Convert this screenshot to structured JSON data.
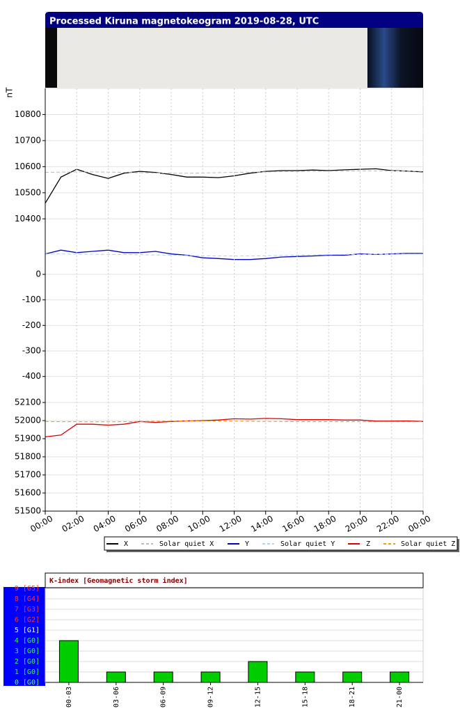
{
  "header": {
    "title": "Processed Kiruna magnetokeogram 2019-08-28, UTC"
  },
  "chart_data": [
    {
      "type": "line",
      "y_label": "nT",
      "grid": true,
      "x": [
        0,
        1,
        2,
        3,
        4,
        5,
        6,
        7,
        8,
        9,
        10,
        11,
        12,
        13,
        14,
        15,
        16,
        17,
        18,
        19,
        20,
        21,
        22,
        23,
        24
      ],
      "xlim": [
        0,
        24
      ],
      "ylim": [
        10350,
        10900
      ],
      "yticks": [
        10400,
        10500,
        10600,
        10700,
        10800
      ],
      "series": [
        {
          "name": "X",
          "color": "#000000",
          "values": [
            10460,
            10560,
            10590,
            10570,
            10555,
            10575,
            10582,
            10578,
            10570,
            10560,
            10560,
            10558,
            10565,
            10575,
            10582,
            10585,
            10585,
            10587,
            10585,
            10588,
            10590,
            10592,
            10585,
            10583,
            10580
          ]
        },
        {
          "name": "Solar quiet X",
          "color": "#bbbbbb",
          "dashed": true,
          "values": [
            10578,
            10579,
            10580,
            10580,
            10579,
            10578,
            10577,
            10576,
            10575,
            10575,
            10576,
            10577,
            10578,
            10579,
            10580,
            10581,
            10582,
            10582,
            10583,
            10583,
            10584,
            10584,
            10584,
            10583,
            10582
          ]
        }
      ]
    },
    {
      "type": "line",
      "grid": true,
      "x": [
        0,
        1,
        2,
        3,
        4,
        5,
        6,
        7,
        8,
        9,
        10,
        11,
        12,
        13,
        14,
        15,
        16,
        17,
        18,
        19,
        20,
        21,
        22,
        23,
        24
      ],
      "xlim": [
        0,
        24
      ],
      "ylim": [
        -450,
        150
      ],
      "yticks": [
        -400,
        -300,
        -200,
        -100,
        0
      ],
      "series": [
        {
          "name": "Y",
          "color": "#0000cc",
          "values": [
            80,
            95,
            85,
            90,
            95,
            85,
            85,
            90,
            80,
            75,
            65,
            62,
            58,
            58,
            62,
            68,
            70,
            72,
            75,
            75,
            80,
            78,
            80,
            82,
            82
          ]
        },
        {
          "name": "Solar quiet Y",
          "color": "#a8d8f0",
          "dashed": true,
          "values": [
            80,
            80,
            79,
            79,
            78,
            78,
            77,
            76,
            75,
            74,
            73,
            72,
            72,
            72,
            73,
            74,
            75,
            76,
            77,
            78,
            78,
            79,
            79,
            80,
            80
          ]
        }
      ]
    },
    {
      "type": "line",
      "grid": true,
      "x": [
        0,
        1,
        2,
        3,
        4,
        5,
        6,
        7,
        8,
        9,
        10,
        11,
        12,
        13,
        14,
        15,
        16,
        17,
        18,
        19,
        20,
        21,
        22,
        23,
        24
      ],
      "xlim": [
        0,
        24
      ],
      "ylim": [
        51500,
        52150
      ],
      "yticks": [
        51500,
        51600,
        51700,
        51800,
        51900,
        52000,
        52100
      ],
      "xticks": [
        {
          "value": 0,
          "label": "00:00"
        },
        {
          "value": 2,
          "label": "02:00"
        },
        {
          "value": 4,
          "label": "04:00"
        },
        {
          "value": 6,
          "label": "06:00"
        },
        {
          "value": 8,
          "label": "08:00"
        },
        {
          "value": 10,
          "label": "10:00"
        },
        {
          "value": 12,
          "label": "12:00"
        },
        {
          "value": 14,
          "label": "14:00"
        },
        {
          "value": 16,
          "label": "16:00"
        },
        {
          "value": 18,
          "label": "18:00"
        },
        {
          "value": 20,
          "label": "20:00"
        },
        {
          "value": 22,
          "label": "22:00"
        },
        {
          "value": 24,
          "label": "00:00"
        }
      ],
      "series": [
        {
          "name": "Z",
          "color": "#dd0000",
          "values": [
            51910,
            51920,
            51980,
            51980,
            51975,
            51980,
            51995,
            51990,
            51995,
            51998,
            52000,
            52003,
            52010,
            52008,
            52012,
            52010,
            52005,
            52005,
            52005,
            52003,
            52003,
            51997,
            51997,
            51998,
            51995
          ]
        },
        {
          "name": "Solar quiet Z",
          "color": "#ff9900",
          "dashed": true,
          "values": [
            51995,
            51994,
            51994,
            51993,
            51993,
            51994,
            51995,
            51996,
            51997,
            51998,
            51998,
            51998,
            51997,
            51996,
            51995,
            51995,
            51994,
            51994,
            51994,
            51994,
            51994,
            51994,
            51994,
            51994,
            51994
          ]
        }
      ]
    },
    {
      "type": "bar",
      "title": "K-index [Geomagnetic storm index]",
      "color": "#00cc00",
      "grid": true,
      "categories": [
        "00-03",
        "03-06",
        "06-09",
        "09-12",
        "12-15",
        "15-18",
        "18-21",
        "21-00"
      ],
      "values": [
        4,
        1,
        1,
        1,
        2,
        1,
        1,
        1
      ],
      "ylim": [
        0,
        9
      ],
      "yticks": [
        {
          "value": 0,
          "label": "0 [G0]"
        },
        {
          "value": 1,
          "label": "1 [G0]"
        },
        {
          "value": 2,
          "label": "2 [G0]"
        },
        {
          "value": 3,
          "label": "3 [G0]"
        },
        {
          "value": 4,
          "label": "4 [G0]"
        },
        {
          "value": 5,
          "label": "5 [G1]"
        },
        {
          "value": 6,
          "label": "6 [G2]"
        },
        {
          "value": 7,
          "label": "7 [G3]"
        },
        {
          "value": 8,
          "label": "8 [G4]"
        },
        {
          "value": 9,
          "label": "9 [G5]"
        }
      ],
      "ytick_colors": [
        "#66ff66",
        "#33ff33",
        "#33ff33",
        "#33ff33",
        "#33ff33",
        "#ffffff",
        "#ff3333",
        "#ff3333",
        "#ff3333",
        "#ff3333"
      ]
    }
  ]
}
